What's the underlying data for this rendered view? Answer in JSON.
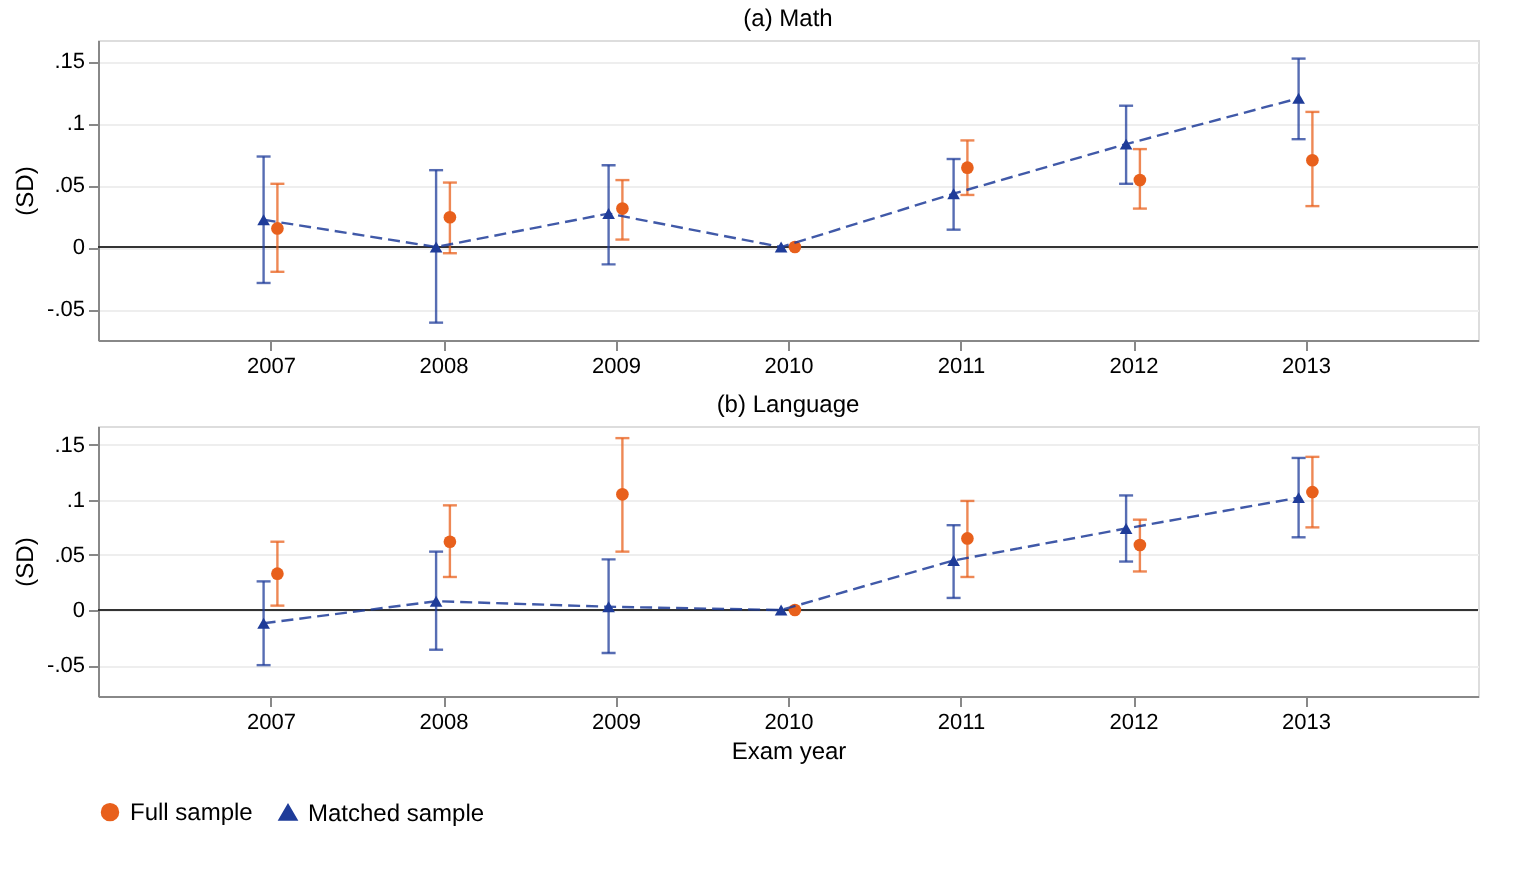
{
  "chart_data": [
    {
      "type": "scatter",
      "title": "(a) Math",
      "ylabel": "(SD)",
      "xlim": [
        2006,
        2014
      ],
      "xticks": [
        2007,
        2008,
        2009,
        2010,
        2011,
        2012,
        2013
      ],
      "ylim": [
        -0.075,
        0.167
      ],
      "yticks": [
        {
          "value": -0.05,
          "label": "-.05"
        },
        0,
        {
          "value": 0.05,
          "label": ".05"
        },
        {
          "value": 0.1,
          "label": ".1"
        },
        {
          "value": 0.15,
          "label": ".15"
        }
      ],
      "grid": "y",
      "legend": "bottom",
      "ref_lines": [
        {
          "axis": "y",
          "value": 0,
          "color": "#333333"
        }
      ],
      "series": [
        {
          "name": "Full sample",
          "marker": "circle",
          "color": "#e8601c",
          "x": [
            2007.04,
            2008.04,
            2009.04,
            2010.04,
            2011.04,
            2012.04,
            2013.04
          ],
          "values": [
            0.015,
            0.024,
            0.031,
            0,
            0.064,
            0.054,
            0.07
          ],
          "errors": [
            [
              -0.02,
              0.051
            ],
            [
              -0.005,
              0.052
            ],
            [
              0.006,
              0.054
            ],
            null,
            [
              0.042,
              0.086
            ],
            [
              0.031,
              0.079
            ],
            [
              0.033,
              0.109
            ]
          ]
        },
        {
          "name": "Matched sample",
          "type": "line",
          "marker": "triangle",
          "line_style": "dashed",
          "color": "#1f3c99",
          "x": [
            2006.96,
            2007.96,
            2008.96,
            2009.96,
            2010.96,
            2011.96,
            2012.96
          ],
          "values": [
            0.022,
            0,
            0.027,
            0,
            0.043,
            0.083,
            0.12
          ],
          "errors": [
            [
              -0.029,
              0.073
            ],
            [
              -0.061,
              0.062
            ],
            [
              -0.014,
              0.066
            ],
            null,
            [
              0.014,
              0.071
            ],
            [
              0.051,
              0.114
            ],
            [
              0.087,
              0.152
            ]
          ]
        }
      ]
    },
    {
      "type": "scatter",
      "title": "(b) Language",
      "ylabel": "(SD)",
      "xlabel": "Exam year",
      "xlim": [
        2006,
        2014
      ],
      "xticks": [
        2007,
        2008,
        2009,
        2010,
        2011,
        2012,
        2013
      ],
      "ylim": [
        -0.078,
        0.167
      ],
      "yticks": [
        {
          "value": -0.05,
          "label": "-.05"
        },
        0,
        {
          "value": 0.05,
          "label": ".05"
        },
        {
          "value": 0.1,
          "label": ".1"
        },
        {
          "value": 0.15,
          "label": ".15"
        }
      ],
      "grid": "y",
      "legend": "bottom",
      "ref_lines": [
        {
          "axis": "y",
          "value": 0,
          "color": "#333333"
        }
      ],
      "series": [
        {
          "name": "Full sample",
          "marker": "circle",
          "color": "#e8601c",
          "x": [
            2007.04,
            2008.04,
            2009.04,
            2010.04,
            2011.04,
            2012.04,
            2013.04
          ],
          "values": [
            0.033,
            0.062,
            0.105,
            0,
            0.065,
            0.059,
            0.107
          ],
          "errors": [
            [
              0.004,
              0.062
            ],
            [
              0.03,
              0.095
            ],
            [
              0.053,
              0.156
            ],
            null,
            [
              0.03,
              0.099
            ],
            [
              0.035,
              0.082
            ],
            [
              0.075,
              0.139
            ]
          ]
        },
        {
          "name": "Matched sample",
          "type": "line",
          "marker": "triangle",
          "line_style": "dashed",
          "color": "#1f3c99",
          "x": [
            2006.96,
            2007.96,
            2008.96,
            2009.96,
            2010.96,
            2011.96,
            2012.96
          ],
          "values": [
            -0.012,
            0.008,
            0.003,
            0,
            0.045,
            0.074,
            0.102
          ],
          "errors": [
            [
              -0.05,
              0.026
            ],
            [
              -0.036,
              0.053
            ],
            [
              -0.039,
              0.046
            ],
            null,
            [
              0.011,
              0.077
            ],
            [
              0.044,
              0.104
            ],
            [
              0.066,
              0.138
            ]
          ]
        }
      ]
    }
  ]
}
